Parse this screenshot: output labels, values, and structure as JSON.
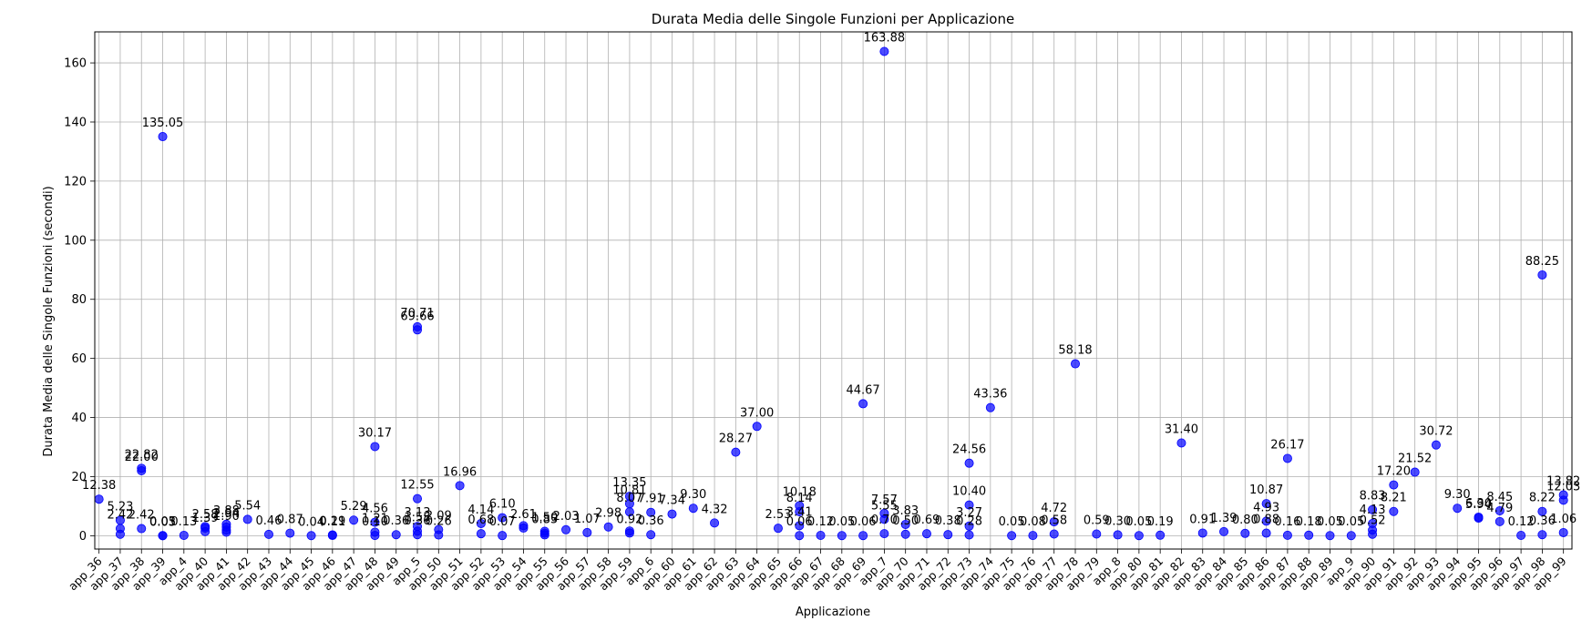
{
  "chart_data": {
    "type": "scatter",
    "title": "Durata Media delle Singole Funzioni per Applicazione",
    "xlabel": "Applicazione",
    "ylabel": "Durata Media delle Singole Funzioni (secondi)",
    "ylim": [
      -4.5,
      170.5
    ],
    "yticks": [
      0,
      20,
      40,
      60,
      80,
      100,
      120,
      140,
      160
    ],
    "grid": true,
    "marker_color": "#0000ff",
    "categories": [
      "app_36",
      "app_37",
      "app_38",
      "app_39",
      "app_4",
      "app_40",
      "app_41",
      "app_42",
      "app_43",
      "app_44",
      "app_45",
      "app_46",
      "app_47",
      "app_48",
      "app_49",
      "app_5",
      "app_50",
      "app_51",
      "app_52",
      "app_53",
      "app_54",
      "app_55",
      "app_56",
      "app_57",
      "app_58",
      "app_59",
      "app_6",
      "app_60",
      "app_61",
      "app_62",
      "app_63",
      "app_64",
      "app_65",
      "app_66",
      "app_67",
      "app_68",
      "app_69",
      "app_7",
      "app_70",
      "app_71",
      "app_72",
      "app_73",
      "app_74",
      "app_75",
      "app_76",
      "app_77",
      "app_78",
      "app_79",
      "app_8",
      "app_80",
      "app_81",
      "app_82",
      "app_83",
      "app_84",
      "app_85",
      "app_86",
      "app_87",
      "app_88",
      "app_89",
      "app_9",
      "app_90",
      "app_91",
      "app_92",
      "app_93",
      "app_94",
      "app_95",
      "app_96",
      "app_97",
      "app_98",
      "app_99"
    ],
    "points": [
      {
        "x": "app_36",
        "y": 12.38,
        "label": "12.38"
      },
      {
        "x": "app_37",
        "y": 5.23,
        "label": "5.23"
      },
      {
        "x": "app_37",
        "y": 2.42,
        "label": "2.42"
      },
      {
        "x": "app_37",
        "y": 0.5,
        "label": ""
      },
      {
        "x": "app_38",
        "y": 22.82,
        "label": "22.82"
      },
      {
        "x": "app_38",
        "y": 22.0,
        "label": "22.00"
      },
      {
        "x": "app_38",
        "y": 2.42,
        "label": "2.42"
      },
      {
        "x": "app_39",
        "y": 135.05,
        "label": "135.05"
      },
      {
        "x": "app_39",
        "y": 0.05,
        "label": "0.05"
      },
      {
        "x": "app_39",
        "y": 0.03,
        "label": "0.03"
      },
      {
        "x": "app_4",
        "y": 0.13,
        "label": "0.13"
      },
      {
        "x": "app_40",
        "y": 2.58,
        "label": "2.58"
      },
      {
        "x": "app_40",
        "y": 1.39,
        "label": "1.39"
      },
      {
        "x": "app_40",
        "y": 3.1,
        "label": ""
      },
      {
        "x": "app_41",
        "y": 3.88,
        "label": "3.88"
      },
      {
        "x": "app_41",
        "y": 2.94,
        "label": "2.94"
      },
      {
        "x": "app_41",
        "y": 1.9,
        "label": "1.90"
      },
      {
        "x": "app_41",
        "y": 1.2,
        "label": ""
      },
      {
        "x": "app_42",
        "y": 5.54,
        "label": "5.54"
      },
      {
        "x": "app_43",
        "y": 0.46,
        "label": "0.46"
      },
      {
        "x": "app_44",
        "y": 0.87,
        "label": "0.87"
      },
      {
        "x": "app_45",
        "y": 0.04,
        "label": "0.04"
      },
      {
        "x": "app_46",
        "y": 0.29,
        "label": "0.29"
      },
      {
        "x": "app_46",
        "y": 0.11,
        "label": "0.11"
      },
      {
        "x": "app_47",
        "y": 5.29,
        "label": "5.29"
      },
      {
        "x": "app_48",
        "y": 30.17,
        "label": "30.17"
      },
      {
        "x": "app_48",
        "y": 4.56,
        "label": "4.56"
      },
      {
        "x": "app_48",
        "y": 1.21,
        "label": "1.21"
      },
      {
        "x": "app_48",
        "y": 0.1,
        "label": "0.10"
      },
      {
        "x": "app_49",
        "y": 0.36,
        "label": "0.36"
      },
      {
        "x": "app_5",
        "y": 70.71,
        "label": "70.71"
      },
      {
        "x": "app_5",
        "y": 69.66,
        "label": "69.66"
      },
      {
        "x": "app_5",
        "y": 12.55,
        "label": "12.55"
      },
      {
        "x": "app_5",
        "y": 3.13,
        "label": "3.13"
      },
      {
        "x": "app_5",
        "y": 1.55,
        "label": "1.55"
      },
      {
        "x": "app_5",
        "y": 0.36,
        "label": "0.36"
      },
      {
        "x": "app_50",
        "y": 2.09,
        "label": "2.09"
      },
      {
        "x": "app_50",
        "y": 0.26,
        "label": "0.26"
      },
      {
        "x": "app_51",
        "y": 16.96,
        "label": "16.96"
      },
      {
        "x": "app_52",
        "y": 4.14,
        "label": "4.14"
      },
      {
        "x": "app_52",
        "y": 0.68,
        "label": "0.68"
      },
      {
        "x": "app_53",
        "y": 6.1,
        "label": "6.10"
      },
      {
        "x": "app_53",
        "y": 0.07,
        "label": "0.07"
      },
      {
        "x": "app_54",
        "y": 2.61,
        "label": "2.61"
      },
      {
        "x": "app_54",
        "y": 3.4,
        "label": ""
      },
      {
        "x": "app_55",
        "y": 1.5,
        "label": "1.50"
      },
      {
        "x": "app_55",
        "y": 0.85,
        "label": "0.85"
      },
      {
        "x": "app_55",
        "y": 0.3,
        "label": ""
      },
      {
        "x": "app_56",
        "y": 2.03,
        "label": "2.03"
      },
      {
        "x": "app_57",
        "y": 1.07,
        "label": "1.07"
      },
      {
        "x": "app_58",
        "y": 2.98,
        "label": "2.98"
      },
      {
        "x": "app_59",
        "y": 13.35,
        "label": "13.35"
      },
      {
        "x": "app_59",
        "y": 10.81,
        "label": "10.81"
      },
      {
        "x": "app_59",
        "y": 8.07,
        "label": "8.07"
      },
      {
        "x": "app_59",
        "y": 0.92,
        "label": "0.92"
      },
      {
        "x": "app_59",
        "y": 1.6,
        "label": ""
      },
      {
        "x": "app_6",
        "y": 7.91,
        "label": "7.91"
      },
      {
        "x": "app_6",
        "y": 0.36,
        "label": "0.36"
      },
      {
        "x": "app_60",
        "y": 7.34,
        "label": "7.34"
      },
      {
        "x": "app_61",
        "y": 9.3,
        "label": "9.30"
      },
      {
        "x": "app_62",
        "y": 4.32,
        "label": "4.32"
      },
      {
        "x": "app_63",
        "y": 28.27,
        "label": "28.27"
      },
      {
        "x": "app_64",
        "y": 37.0,
        "label": "37.00"
      },
      {
        "x": "app_65",
        "y": 2.53,
        "label": "2.53"
      },
      {
        "x": "app_66",
        "y": 10.18,
        "label": "10.18"
      },
      {
        "x": "app_66",
        "y": 8.14,
        "label": "8.14"
      },
      {
        "x": "app_66",
        "y": 3.41,
        "label": "3.41"
      },
      {
        "x": "app_66",
        "y": 0.06,
        "label": "0.06"
      },
      {
        "x": "app_67",
        "y": 0.12,
        "label": "0.12"
      },
      {
        "x": "app_68",
        "y": 0.05,
        "label": "0.05"
      },
      {
        "x": "app_69",
        "y": 44.67,
        "label": "44.67"
      },
      {
        "x": "app_69",
        "y": 0.06,
        "label": "0.06"
      },
      {
        "x": "app_7",
        "y": 163.88,
        "label": "163.88"
      },
      {
        "x": "app_7",
        "y": 7.57,
        "label": "7.57"
      },
      {
        "x": "app_7",
        "y": 5.55,
        "label": "5.55"
      },
      {
        "x": "app_7",
        "y": 0.7,
        "label": "0.70"
      },
      {
        "x": "app_70",
        "y": 3.83,
        "label": "3.83"
      },
      {
        "x": "app_70",
        "y": 0.5,
        "label": "0.50"
      },
      {
        "x": "app_71",
        "y": 0.69,
        "label": "0.69"
      },
      {
        "x": "app_72",
        "y": 0.38,
        "label": "0.38"
      },
      {
        "x": "app_73",
        "y": 24.56,
        "label": "24.56"
      },
      {
        "x": "app_73",
        "y": 10.4,
        "label": "10.40"
      },
      {
        "x": "app_73",
        "y": 3.27,
        "label": "3.27"
      },
      {
        "x": "app_73",
        "y": 0.28,
        "label": "0.28"
      },
      {
        "x": "app_74",
        "y": 43.36,
        "label": "43.36"
      },
      {
        "x": "app_75",
        "y": 0.05,
        "label": "0.05"
      },
      {
        "x": "app_76",
        "y": 0.08,
        "label": "0.08"
      },
      {
        "x": "app_77",
        "y": 4.72,
        "label": "4.72"
      },
      {
        "x": "app_77",
        "y": 0.58,
        "label": "0.58"
      },
      {
        "x": "app_78",
        "y": 58.18,
        "label": "58.18"
      },
      {
        "x": "app_79",
        "y": 0.59,
        "label": "0.59"
      },
      {
        "x": "app_8",
        "y": 0.3,
        "label": "0.30"
      },
      {
        "x": "app_80",
        "y": 0.05,
        "label": "0.05"
      },
      {
        "x": "app_81",
        "y": 0.19,
        "label": "0.19"
      },
      {
        "x": "app_82",
        "y": 31.4,
        "label": "31.40"
      },
      {
        "x": "app_83",
        "y": 0.91,
        "label": "0.91"
      },
      {
        "x": "app_84",
        "y": 1.39,
        "label": "1.39"
      },
      {
        "x": "app_85",
        "y": 0.8,
        "label": "0.80"
      },
      {
        "x": "app_86",
        "y": 10.87,
        "label": "10.87"
      },
      {
        "x": "app_86",
        "y": 4.93,
        "label": "4.93"
      },
      {
        "x": "app_86",
        "y": 0.88,
        "label": "0.88"
      },
      {
        "x": "app_87",
        "y": 26.17,
        "label": "26.17"
      },
      {
        "x": "app_87",
        "y": 0.16,
        "label": "0.16"
      },
      {
        "x": "app_88",
        "y": 0.18,
        "label": "0.18"
      },
      {
        "x": "app_89",
        "y": 0.05,
        "label": "0.05"
      },
      {
        "x": "app_9",
        "y": 0.05,
        "label": "0.05"
      },
      {
        "x": "app_90",
        "y": 8.83,
        "label": "8.83"
      },
      {
        "x": "app_90",
        "y": 4.13,
        "label": "4.13"
      },
      {
        "x": "app_90",
        "y": 1.9,
        "label": ""
      },
      {
        "x": "app_90",
        "y": 0.52,
        "label": "0.52"
      },
      {
        "x": "app_91",
        "y": 17.2,
        "label": "17.20"
      },
      {
        "x": "app_91",
        "y": 8.21,
        "label": "8.21"
      },
      {
        "x": "app_92",
        "y": 21.52,
        "label": "21.52"
      },
      {
        "x": "app_93",
        "y": 30.72,
        "label": "30.72"
      },
      {
        "x": "app_94",
        "y": 9.3,
        "label": "9.30"
      },
      {
        "x": "app_95",
        "y": 6.3,
        "label": "6.30"
      },
      {
        "x": "app_95",
        "y": 5.94,
        "label": "5.94"
      },
      {
        "x": "app_96",
        "y": 8.45,
        "label": "8.45"
      },
      {
        "x": "app_96",
        "y": 4.79,
        "label": "4.79"
      },
      {
        "x": "app_97",
        "y": 0.12,
        "label": "0.12"
      },
      {
        "x": "app_98",
        "y": 88.25,
        "label": "88.25"
      },
      {
        "x": "app_98",
        "y": 8.22,
        "label": "8.22"
      },
      {
        "x": "app_98",
        "y": 0.36,
        "label": "0.36"
      },
      {
        "x": "app_99",
        "y": 13.82,
        "label": "13.82"
      },
      {
        "x": "app_99",
        "y": 12.03,
        "label": "12.03"
      },
      {
        "x": "app_99",
        "y": 1.06,
        "label": "1.06"
      }
    ]
  }
}
